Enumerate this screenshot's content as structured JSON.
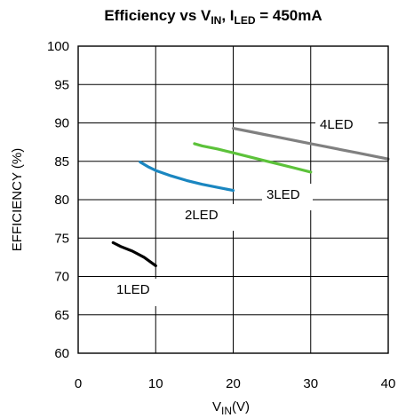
{
  "chart_data": {
    "type": "line",
    "title": {
      "main": "Efficiency vs V",
      "main_sub": "IN",
      "sep": ", I",
      "sep_sub": "LED",
      "tail": " = 450mA"
    },
    "xlabel": {
      "base": "V",
      "sub": "IN",
      "tail": "(V)"
    },
    "ylabel": "EFFICIENCY (%)",
    "xlim": [
      0,
      40
    ],
    "ylim": [
      60,
      100
    ],
    "x_ticks": [
      "0",
      "10",
      "20",
      "30",
      "40"
    ],
    "y_ticks": [
      "60",
      "65",
      "70",
      "75",
      "80",
      "85",
      "90",
      "95",
      "100"
    ],
    "grid": true,
    "series": [
      {
        "name": "1LED",
        "color": "#000000",
        "x": [
          4.5,
          5.5,
          7,
          8.5,
          10
        ],
        "y": [
          74.4,
          73.9,
          73.3,
          72.5,
          71.4
        ]
      },
      {
        "name": "2LED",
        "color": "#1a86c0",
        "x": [
          8,
          9,
          10,
          12,
          14,
          16,
          18,
          20
        ],
        "y": [
          84.9,
          84.3,
          83.8,
          83.1,
          82.5,
          82.0,
          81.6,
          81.2
        ]
      },
      {
        "name": "3LED",
        "color": "#5cc23a",
        "x": [
          15,
          16,
          18,
          20,
          22,
          24,
          26,
          28,
          30
        ],
        "y": [
          87.3,
          87.0,
          86.6,
          86.1,
          85.6,
          85.1,
          84.6,
          84.1,
          83.6
        ]
      },
      {
        "name": "4LED",
        "color": "#808080",
        "x": [
          20,
          22,
          24,
          26,
          28,
          30,
          32,
          34,
          36,
          38,
          40
        ],
        "y": [
          89.3,
          88.9,
          88.5,
          88.1,
          87.7,
          87.3,
          86.9,
          86.5,
          86.1,
          85.7,
          85.3
        ]
      }
    ]
  }
}
